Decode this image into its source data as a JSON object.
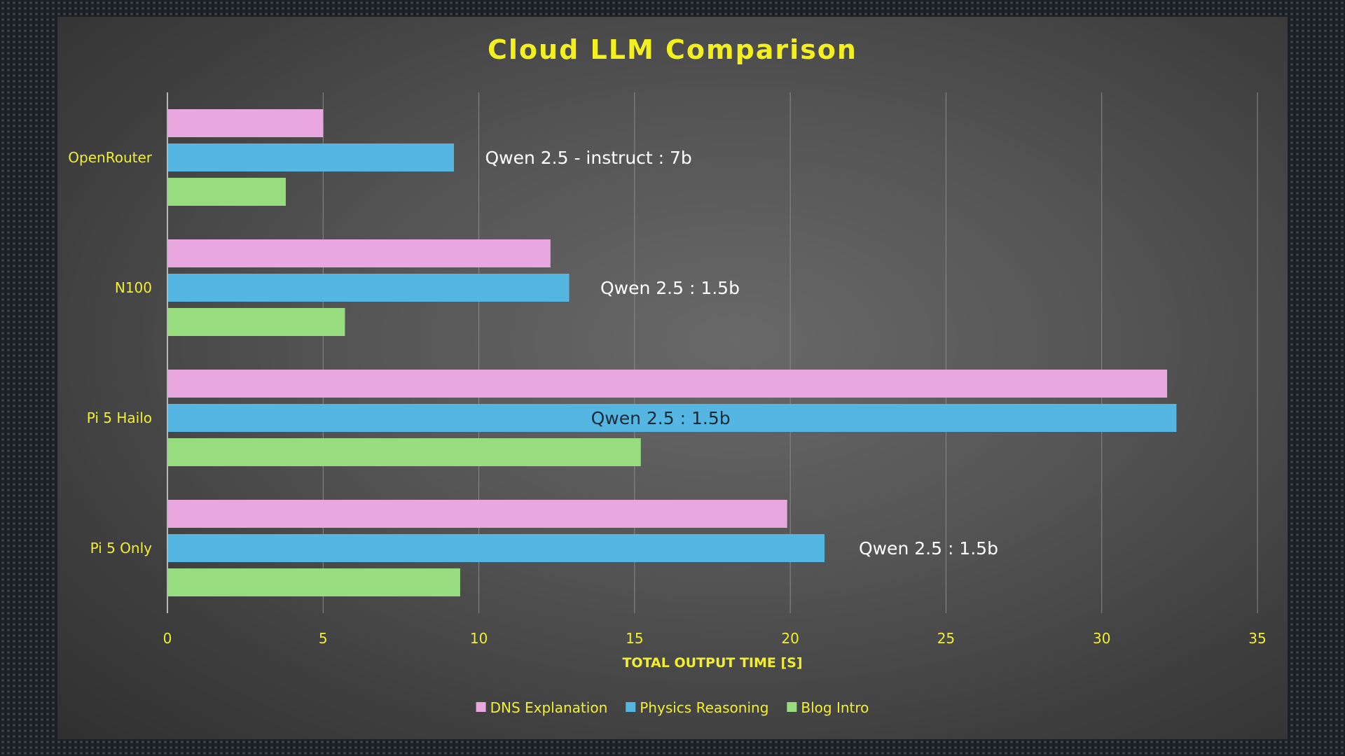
{
  "chart_data": {
    "type": "bar",
    "orientation": "horizontal",
    "title": "Cloud LLM Comparison",
    "xlabel": "TOTAL OUTPUT TIME [S]",
    "ylabel": "",
    "xlim": [
      0,
      35
    ],
    "xticks": [
      0,
      5,
      10,
      15,
      20,
      25,
      30,
      35
    ],
    "grid": true,
    "legend_position": "bottom",
    "categories": [
      "OpenRouter",
      "N100",
      "Pi 5 Hailo",
      "Pi 5 Only"
    ],
    "series": [
      {
        "name": "DNS Explanation",
        "color": "#e8a8df",
        "values": [
          5.0,
          12.3,
          32.1,
          19.9
        ]
      },
      {
        "name": "Physics Reasoning",
        "color": "#55b6e2",
        "values": [
          9.2,
          12.9,
          32.4,
          21.1
        ]
      },
      {
        "name": "Blog Intro",
        "color": "#97dd80",
        "values": [
          3.8,
          5.7,
          15.2,
          9.4
        ]
      }
    ],
    "annotations": [
      {
        "category": "OpenRouter",
        "text": "Qwen 2.5 - instruct : 7b",
        "x": 10.2,
        "color": "#ffffff"
      },
      {
        "category": "N100",
        "text": "Qwen 2.5 : 1.5b",
        "x": 13.9,
        "color": "#ffffff"
      },
      {
        "category": "Pi 5 Hailo",
        "text": "Qwen 2.5 : 1.5b",
        "x": 13.6,
        "color": "#1a2a38"
      },
      {
        "category": "Pi 5 Only",
        "text": "Qwen 2.5 : 1.5b",
        "x": 22.2,
        "color": "#ffffff"
      }
    ]
  }
}
